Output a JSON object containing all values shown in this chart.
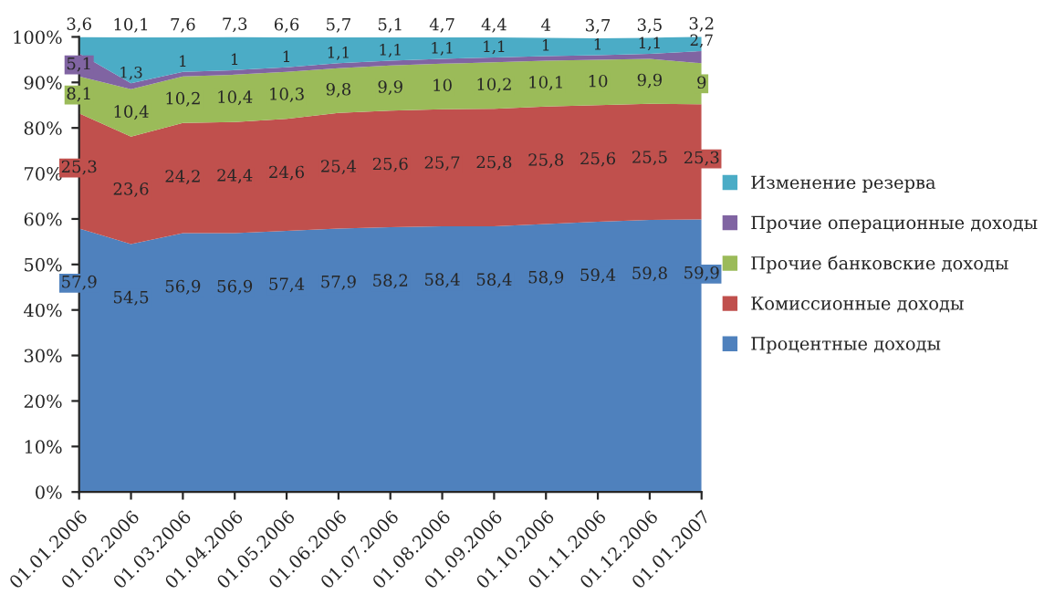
{
  "chart_data": {
    "type": "area",
    "stacked": true,
    "categories": [
      "01.01.2006",
      "01.02.2006",
      "01.03.2006",
      "01.04.2006",
      "01.05.2006",
      "01.06.2006",
      "01.07.2006",
      "01.08.2006",
      "01.09.2006",
      "01.10.2006",
      "01.11.2006",
      "01.12.2006",
      "01.01.2007"
    ],
    "series": [
      {
        "name": "Процентные доходы",
        "color": "#4f81bd",
        "values": [
          57.9,
          54.5,
          56.9,
          56.9,
          57.4,
          57.9,
          58.2,
          58.4,
          58.4,
          58.9,
          59.4,
          59.8,
          59.9
        ],
        "value_labels": [
          "57,9",
          "54,5",
          "56,9",
          "56,9",
          "57,4",
          "57,9",
          "58,2",
          "58,4",
          "58,4",
          "58,9",
          "59,4",
          "59,8",
          "59,9"
        ]
      },
      {
        "name": "Комиссионные доходы",
        "color": "#c0504d",
        "values": [
          25.3,
          23.6,
          24.2,
          24.4,
          24.6,
          25.4,
          25.6,
          25.7,
          25.8,
          25.8,
          25.6,
          25.5,
          25.3
        ],
        "value_labels": [
          "25,3",
          "23,6",
          "24,2",
          "24,4",
          "24,6",
          "25,4",
          "25,6",
          "25,7",
          "25,8",
          "25,8",
          "25,6",
          "25,5",
          "25,3"
        ]
      },
      {
        "name": "Прочие банковские доходы",
        "color": "#9bbb59",
        "values": [
          8.1,
          10.4,
          10.2,
          10.4,
          10.3,
          9.8,
          9.9,
          10,
          10.2,
          10.1,
          10,
          9.9,
          9
        ],
        "value_labels": [
          "8,1",
          "10,4",
          "10,2",
          "10,4",
          "10,3",
          "9,8",
          "9,9",
          "10",
          "10,2",
          "10,1",
          "10",
          "9,9",
          "9"
        ]
      },
      {
        "name": "Прочие операционные доходы",
        "color": "#8064a2",
        "values": [
          5.1,
          1.3,
          1,
          1,
          1,
          1.1,
          1.1,
          1.1,
          1.1,
          1,
          1,
          1.1,
          2.7
        ],
        "value_labels": [
          "5,1",
          "1,3",
          "1",
          "1",
          "1",
          "1,1",
          "1,1",
          "1,1",
          "1,1",
          "1",
          "1",
          "1,1",
          "2,7"
        ]
      },
      {
        "name": "Изменение резерва",
        "color": "#4bacc6",
        "values": [
          3.6,
          10.1,
          7.6,
          7.3,
          6.6,
          5.7,
          5.1,
          4.7,
          4.4,
          4,
          3.7,
          3.5,
          3.2
        ],
        "value_labels": [
          "3,6",
          "10,1",
          "7,6",
          "7,3",
          "6,6",
          "5,7",
          "5,1",
          "4,7",
          "4,4",
          "4",
          "3,7",
          "3,5",
          "3,2"
        ]
      }
    ],
    "ylim": [
      0,
      100
    ],
    "yticks": [
      {
        "value": 0,
        "label": "0%"
      },
      {
        "value": 10,
        "label": "10%"
      },
      {
        "value": 20,
        "label": "20%"
      },
      {
        "value": 30,
        "label": "30%"
      },
      {
        "value": 40,
        "label": "40%"
      },
      {
        "value": 50,
        "label": "50%"
      },
      {
        "value": 60,
        "label": "60%"
      },
      {
        "value": 70,
        "label": "70%"
      },
      {
        "value": 80,
        "label": "80%"
      },
      {
        "value": 90,
        "label": "90%"
      },
      {
        "value": 100,
        "label": "100%"
      }
    ],
    "legend": "right",
    "grid": false
  }
}
